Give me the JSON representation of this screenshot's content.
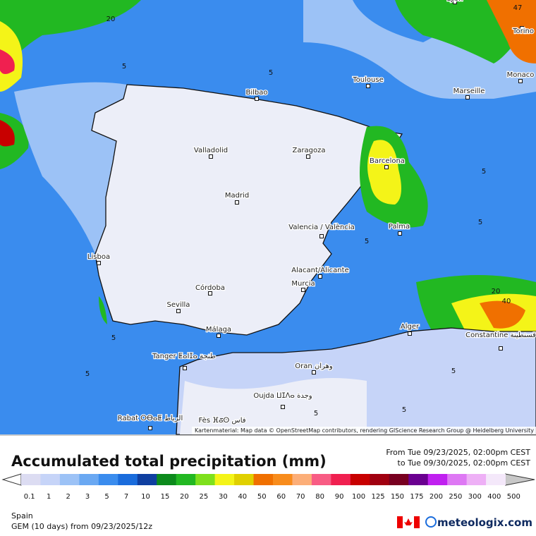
{
  "cities": [
    "Lyon",
    "Torino",
    "Monaco",
    "Toulouse",
    "Marseille",
    "Bilbao",
    "Valladolid",
    "Zaragoza",
    "Barcelona",
    "Madrid",
    "Valencia / València",
    "Palma",
    "Lisboa",
    "Alacant/Alicante",
    "Murcia",
    "Córdoba",
    "Sevilla",
    "Málaga",
    "Alger",
    "Constantine قسنطينة",
    "Tanger ⵟⴰⵏⵊⴰ طنجة",
    "Oran وهران",
    "Oujda ⵡⵊⴷⴰ وجدة",
    "Rabat ⵔⴱⴰⵟ الرباط",
    "Fès ⴼⴰⵙ فاس"
  ],
  "contour_labels": [
    20,
    5,
    5,
    47,
    5,
    5,
    5,
    5,
    20,
    40,
    5,
    5,
    5,
    5
  ],
  "attribution": "Kartenmaterial: Map data © OpenStreetMap contributors, rendering GIScience Research Group @ Heidelberg University",
  "title": "Accumulated total precipitation (mm)",
  "period_from": "From Tue 09/23/2025, 02:00pm CEST",
  "period_to": "to Tue 09/30/2025, 02:00pm CEST",
  "legend": [
    {
      "value": 0.1,
      "color": "#dcdcf2"
    },
    {
      "value": 1,
      "color": "#c6d4f8"
    },
    {
      "value": 2,
      "color": "#9cc2f6"
    },
    {
      "value": 3,
      "color": "#6aa8f2"
    },
    {
      "value": 5,
      "color": "#3a8cee"
    },
    {
      "value": 7,
      "color": "#1a6cdc"
    },
    {
      "value": 10,
      "color": "#0f3fa0"
    },
    {
      "value": 15,
      "color": "#0c8a1c"
    },
    {
      "value": 20,
      "color": "#22b822"
    },
    {
      "value": 25,
      "color": "#7ee01c"
    },
    {
      "value": 30,
      "color": "#f4f418"
    },
    {
      "value": 40,
      "color": "#e0d000"
    },
    {
      "value": 50,
      "color": "#f07000"
    },
    {
      "value": 60,
      "color": "#f88c1c"
    },
    {
      "value": 70,
      "color": "#fcae78"
    },
    {
      "value": 80,
      "color": "#f85c84"
    },
    {
      "value": 90,
      "color": "#f02050"
    },
    {
      "value": 100,
      "color": "#c80000"
    },
    {
      "value": 125,
      "color": "#a00010"
    },
    {
      "value": 150,
      "color": "#780020"
    },
    {
      "value": 175,
      "color": "#6a0090"
    },
    {
      "value": 200,
      "color": "#c020f0"
    },
    {
      "value": 250,
      "color": "#de78f4"
    },
    {
      "value": 300,
      "color": "#eeb0f6"
    },
    {
      "value": 400,
      "color": "#f4e8fa"
    },
    {
      "value": 500,
      "color": "#c8c8c8"
    }
  ],
  "region": "Spain",
  "model": "GEM (10 days) from 09/23/2025/12z",
  "brand": "meteologix.com"
}
